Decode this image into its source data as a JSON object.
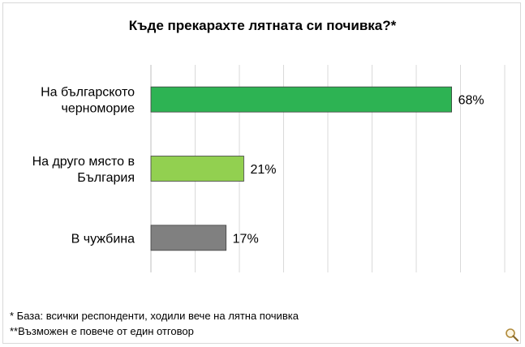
{
  "chart_data": {
    "type": "bar",
    "orientation": "horizontal",
    "title": "Къде прекарахте лятната си почивка?*",
    "categories": [
      "На българското черноморие",
      "На друго място в България",
      "В чужбина"
    ],
    "category_lines": [
      [
        "На българското",
        "черноморие"
      ],
      [
        "На друго място в",
        "България"
      ],
      [
        "В чужбина"
      ]
    ],
    "values": [
      68,
      21,
      17
    ],
    "value_labels": [
      "68%",
      "21%",
      "17%"
    ],
    "colors": [
      "#2db353",
      "#92d050",
      "#808080"
    ],
    "xlim": [
      0,
      80
    ],
    "grid": true
  },
  "footnotes": {
    "base": "* База: всички респонденти, ходили вече на лятна почивка",
    "multiple": "**Възможен е повече от един отговор"
  },
  "zoom_icon": "magnifier-icon"
}
